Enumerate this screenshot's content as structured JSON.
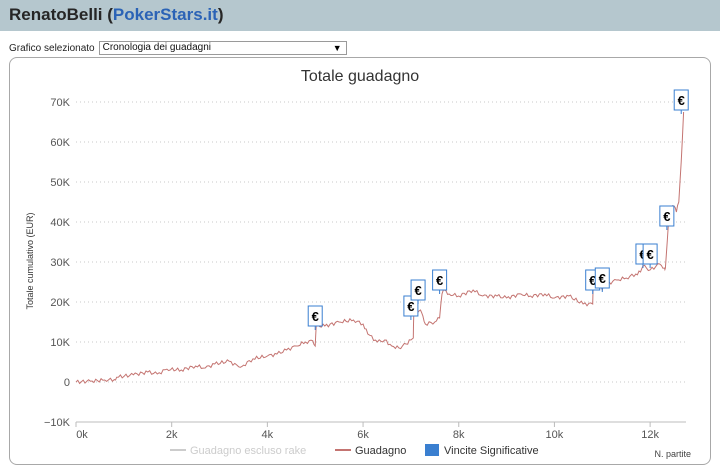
{
  "header": {
    "user": "RenatoBelli",
    "open_paren": " (",
    "site": "PokerStars.it",
    "close_paren": ")"
  },
  "selector": {
    "label": "Grafico selezionato",
    "value": "Cronologia dei guadagni",
    "arrow": "▼"
  },
  "colors": {
    "header_bg": "#b5c7ce",
    "site_link": "#2b63b6",
    "line": "#c47471",
    "rake_line": "#cccccc",
    "marker_border": "#3a7fd0",
    "legend_box": "#3a7fd0"
  },
  "chart_data": {
    "type": "line",
    "title": "Totale guadagno",
    "ylabel": "Totale cumulativo (EUR)",
    "xlabel": "N. partite",
    "xlim": [
      0,
      12750
    ],
    "ylim": [
      -10000,
      70000
    ],
    "x_ticks": [
      0,
      2000,
      4000,
      6000,
      8000,
      10000,
      12000
    ],
    "x_tick_labels": [
      "0k",
      "2k",
      "4k",
      "6k",
      "8k",
      "10k",
      "12k"
    ],
    "y_ticks": [
      -10000,
      0,
      10000,
      20000,
      30000,
      40000,
      50000,
      60000,
      70000
    ],
    "y_tick_labels": [
      "−10K",
      "0",
      "10K",
      "20K",
      "30K",
      "40K",
      "50K",
      "60K",
      "70K"
    ],
    "grid": "horizontal dotted",
    "legend_position": "bottom-center",
    "series": [
      {
        "name": "Guadagno escluso rake",
        "values": []
      },
      {
        "name": "Guadagno",
        "x": [
          0,
          300,
          600,
          800,
          850,
          1200,
          1500,
          1700,
          1900,
          2200,
          2500,
          2700,
          2900,
          3200,
          3400,
          3500,
          3700,
          4000,
          4200,
          4400,
          4600,
          4800,
          4950,
          5000,
          5020,
          5200,
          5500,
          5800,
          6000,
          6100,
          6300,
          6450,
          6600,
          6750,
          6900,
          7000,
          7050,
          7060,
          7200,
          7250,
          7300,
          7500,
          7600,
          7650,
          7700,
          7800,
          8000,
          8300,
          8500,
          8800,
          9000,
          9300,
          9500,
          9800,
          10000,
          10300,
          10600,
          10800,
          10810,
          10900,
          11000,
          11050,
          11100,
          11300,
          11500,
          11700,
          11800,
          11850,
          12000,
          12200,
          12300,
          12320,
          12400,
          12500,
          12550,
          12600,
          12650,
          12700
        ],
        "y": [
          0,
          200,
          500,
          600,
          1200,
          1800,
          2500,
          2000,
          3200,
          3000,
          4000,
          3500,
          4500,
          5200,
          3800,
          4200,
          5800,
          6500,
          7000,
          8000,
          9000,
          10000,
          10300,
          9000,
          14000,
          14000,
          15000,
          15500,
          14500,
          12000,
          10000,
          10500,
          9000,
          8500,
          9500,
          10500,
          11000,
          17000,
          18000,
          16500,
          14500,
          15000,
          16000,
          22000,
          23000,
          22000,
          21500,
          23000,
          21500,
          21500,
          21000,
          22000,
          21500,
          22000,
          21000,
          21500,
          19500,
          19500,
          24000,
          25000,
          23000,
          25000,
          24500,
          25500,
          26000,
          27000,
          27500,
          29000,
          28000,
          29500,
          28500,
          28500,
          43000,
          44000,
          42500,
          45000,
          55000,
          67500
        ]
      },
      {
        "name": "Vincite Significative",
        "symbol": "€",
        "x": [
          5000,
          7000,
          7150,
          7600,
          10800,
          11000,
          11850,
          12000,
          12350,
          12650
        ],
        "y": [
          14000,
          16500,
          20500,
          23000,
          23000,
          23500,
          29500,
          29500,
          39000,
          69000
        ]
      }
    ]
  }
}
